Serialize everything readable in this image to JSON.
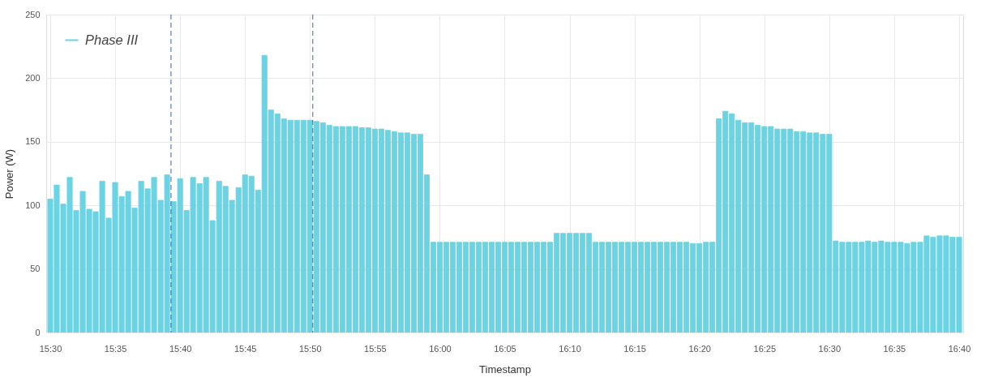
{
  "chart_data": {
    "type": "bar",
    "xlabel": "Timestamp",
    "ylabel": "Power (W)",
    "x": [
      15.5,
      15.5083,
      15.5167,
      15.525,
      15.5333,
      15.5417,
      15.55,
      15.5583,
      15.5667,
      15.575,
      15.5833,
      15.5917,
      15.6,
      15.6083,
      15.6167,
      15.625,
      15.6333,
      15.6417,
      15.65,
      15.6583,
      15.6667,
      15.675,
      15.6833,
      15.6917,
      15.7,
      15.7083,
      15.7167,
      15.725,
      15.7333,
      15.7417,
      15.75,
      15.7583,
      15.7667,
      15.775,
      15.7833,
      15.7917,
      15.8,
      15.8083,
      15.8167,
      15.825,
      15.8333,
      15.8417,
      15.85,
      15.8583,
      15.8667,
      15.875,
      15.8833,
      15.8917,
      15.9,
      15.9083,
      15.9167,
      15.925,
      15.9333,
      15.9417,
      15.95,
      15.9583,
      15.9667,
      15.975,
      15.9833,
      15.9917,
      16,
      16.0083,
      16.0167,
      16.025,
      16.0333,
      16.0417,
      16.05,
      16.0583,
      16.0667,
      16.075,
      16.0833,
      16.0917,
      16.1,
      16.1083,
      16.1167,
      16.125,
      16.1333,
      16.1417,
      16.15,
      16.1583,
      16.1667,
      16.175,
      16.1833,
      16.1917,
      16.2,
      16.2083,
      16.2167,
      16.225,
      16.2333,
      16.2417,
      16.25,
      16.2583,
      16.2667,
      16.275,
      16.2833,
      16.2917,
      16.3,
      16.3083,
      16.3167,
      16.325,
      16.3333,
      16.3417,
      16.35,
      16.3583,
      16.3667,
      16.375,
      16.3833,
      16.3917,
      16.4,
      16.4083,
      16.4167,
      16.425,
      16.4333,
      16.4417,
      16.45,
      16.4583,
      16.4667,
      16.475,
      16.4833,
      16.4917,
      16.5,
      16.5083,
      16.5167,
      16.525,
      16.5333,
      16.5417,
      16.55,
      16.5583,
      16.5667,
      16.575,
      16.5833,
      16.5917,
      16.6,
      16.6083,
      16.6167,
      16.625,
      16.6333,
      16.6417,
      16.65,
      16.6583,
      16.6667
    ],
    "series": [
      {
        "name": "Phase III",
        "color": "#6ad4e4",
        "values": [
          105,
          116,
          101,
          122,
          96,
          111,
          97,
          95,
          119,
          90,
          118,
          107,
          111,
          98,
          119,
          113,
          122,
          104,
          124,
          103,
          121,
          96,
          122,
          117,
          122,
          88,
          119,
          115,
          104,
          114,
          124,
          123,
          112,
          218,
          175,
          172,
          168,
          167,
          167,
          167,
          167,
          166,
          165,
          163,
          162,
          162,
          162,
          162,
          161,
          161,
          160,
          160,
          159,
          158,
          157,
          157,
          156,
          156,
          124,
          71,
          71,
          71,
          71,
          71,
          71,
          71,
          71,
          71,
          71,
          71,
          71,
          71,
          71,
          71,
          71,
          71,
          71,
          71,
          78,
          78,
          78,
          78,
          78,
          78,
          71,
          71,
          71,
          71,
          71,
          71,
          71,
          71,
          71,
          71,
          71,
          71,
          71,
          71,
          71,
          70,
          70,
          71,
          71,
          168,
          174,
          172,
          167,
          165,
          165,
          163,
          162,
          162,
          160,
          160,
          160,
          158,
          158,
          157,
          157,
          156,
          156,
          72,
          71,
          71,
          71,
          71,
          72,
          71,
          72,
          71,
          71,
          71,
          70,
          71,
          71,
          76,
          75,
          76,
          76,
          75,
          75
        ]
      }
    ],
    "xlim": [
      15.5,
      16.6667
    ],
    "xticks": [
      {
        "value": 15.5,
        "label": "15:30"
      },
      {
        "value": 15.5833,
        "label": "15:35"
      },
      {
        "value": 15.6667,
        "label": "15:40"
      },
      {
        "value": 15.75,
        "label": "15:45"
      },
      {
        "value": 15.8333,
        "label": "15:50"
      },
      {
        "value": 15.9167,
        "label": "15:55"
      },
      {
        "value": 16,
        "label": "16:00"
      },
      {
        "value": 16.0833,
        "label": "16:05"
      },
      {
        "value": 16.1667,
        "label": "16:10"
      },
      {
        "value": 16.25,
        "label": "16:15"
      },
      {
        "value": 16.3333,
        "label": "16:20"
      },
      {
        "value": 16.4167,
        "label": "16:25"
      },
      {
        "value": 16.5,
        "label": "16:30"
      },
      {
        "value": 16.5833,
        "label": "16:35"
      },
      {
        "value": 16.6667,
        "label": "16:40"
      }
    ],
    "ylim": [
      0,
      250
    ],
    "yticks": [
      0,
      50,
      100,
      150,
      200,
      250
    ],
    "grid": true,
    "legend": "top left",
    "ref_lines": [
      {
        "axis": "x",
        "value": 15.655,
        "color": "#3a64ae",
        "line_style": "dashed"
      },
      {
        "axis": "x",
        "value": 15.837,
        "color": "#3a64ae",
        "line_style": "dashed"
      }
    ]
  }
}
